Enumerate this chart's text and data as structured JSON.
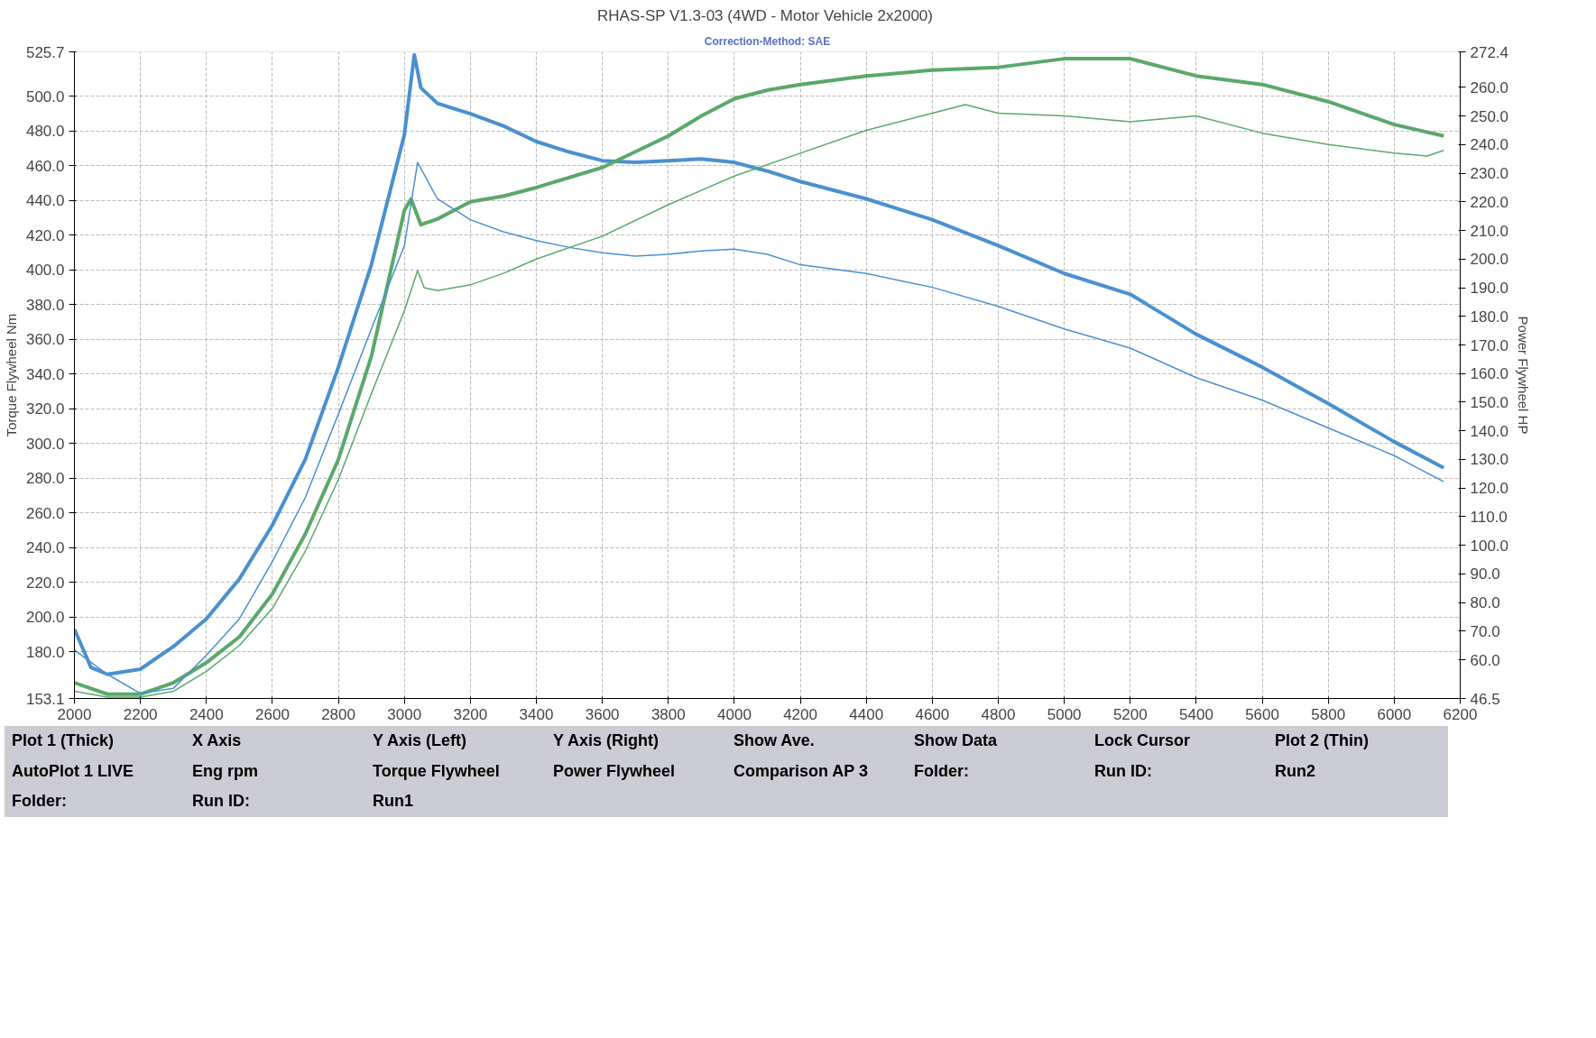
{
  "chart_data": {
    "type": "line",
    "title": "RHAS-SP V1.3-03  (4WD - Motor Vehicle 2x2000)",
    "subtitle": "Correction-Method: SAE",
    "ylabel": "Torque Flywheel Nm",
    "y2label": "Power Flywheel HP",
    "xlim": [
      2000,
      6200
    ],
    "xticks": [
      2000,
      2200,
      2400,
      2600,
      2800,
      3000,
      3200,
      3400,
      3600,
      3800,
      4000,
      4200,
      4400,
      4600,
      4800,
      5000,
      5200,
      5400,
      5600,
      5800,
      6000,
      6200
    ],
    "ylim": [
      153.1,
      525.7
    ],
    "yticks": [
      153.1,
      {
        "value": 180,
        "label": "180.0"
      },
      {
        "value": 200,
        "label": "200.0"
      },
      {
        "value": 220,
        "label": "220.0"
      },
      {
        "value": 240,
        "label": "240.0"
      },
      {
        "value": 260,
        "label": "260.0"
      },
      {
        "value": 280,
        "label": "280.0"
      },
      {
        "value": 300,
        "label": "300.0"
      },
      {
        "value": 320,
        "label": "320.0"
      },
      {
        "value": 340,
        "label": "340.0"
      },
      {
        "value": 360,
        "label": "360.0"
      },
      {
        "value": 380,
        "label": "380.0"
      },
      {
        "value": 400,
        "label": "400.0"
      },
      {
        "value": 420,
        "label": "420.0"
      },
      {
        "value": 440,
        "label": "440.0"
      },
      {
        "value": 460,
        "label": "460.0"
      },
      {
        "value": 480,
        "label": "480.0"
      },
      {
        "value": 500,
        "label": "500.0"
      },
      525.7
    ],
    "y2lim": [
      46.5,
      272.4
    ],
    "y2ticks": [
      46.5,
      {
        "value": 60,
        "label": "60.0"
      },
      {
        "value": 70,
        "label": "70.0"
      },
      {
        "value": 80,
        "label": "80.0"
      },
      {
        "value": 90,
        "label": "90.0"
      },
      {
        "value": 100,
        "label": "100.0"
      },
      {
        "value": 110,
        "label": "110.0"
      },
      {
        "value": 120,
        "label": "120.0"
      },
      {
        "value": 130,
        "label": "130.0"
      },
      {
        "value": 140,
        "label": "140.0"
      },
      {
        "value": 150,
        "label": "150.0"
      },
      {
        "value": 160,
        "label": "160.0"
      },
      {
        "value": 170,
        "label": "170.0"
      },
      {
        "value": 180,
        "label": "180.0"
      },
      {
        "value": 190,
        "label": "190.0"
      },
      {
        "value": 200,
        "label": "200.0"
      },
      {
        "value": 210,
        "label": "210.0"
      },
      {
        "value": 220,
        "label": "220.0"
      },
      {
        "value": 230,
        "label": "230.0"
      },
      {
        "value": 240,
        "label": "240.0"
      },
      {
        "value": 250,
        "label": "250.0"
      },
      {
        "value": 260,
        "label": "260.0"
      },
      272.4
    ],
    "grid": true,
    "line_style": "solid",
    "series": [
      {
        "color": "#4a90d0",
        "x": [
          2000,
          2050,
          2100,
          2200,
          2300,
          2400,
          2500,
          2600,
          2700,
          2800,
          2900,
          3000,
          3030,
          3050,
          3100,
          3200,
          3300,
          3400,
          3500,
          3600,
          3700,
          3800,
          3900,
          4000,
          4100,
          4200,
          4400,
          4600,
          4800,
          5000,
          5200,
          5400,
          5600,
          5800,
          6000,
          6150
        ],
        "values": [
          193,
          171,
          167,
          170,
          183,
          199,
          222,
          253,
          291,
          344,
          403,
          478,
          524,
          505,
          496,
          490,
          483,
          474,
          468,
          463,
          462,
          463,
          464,
          462,
          457,
          451,
          441,
          429,
          414,
          398,
          386,
          363,
          344,
          323,
          301,
          286
        ]
      },
      {
        "color": "#5aa86a",
        "axis": "y2",
        "x": [
          2000,
          2100,
          2200,
          2300,
          2400,
          2500,
          2600,
          2700,
          2800,
          2900,
          3000,
          3020,
          3050,
          3100,
          3200,
          3300,
          3400,
          3600,
          3800,
          3900,
          4000,
          4100,
          4200,
          4400,
          4600,
          4800,
          5000,
          5200,
          5400,
          5600,
          5800,
          6000,
          6150
        ],
        "values": [
          52,
          48,
          48,
          52,
          59,
          68,
          83,
          104,
          130,
          166,
          217,
          221,
          212,
          214,
          220,
          222,
          225,
          232,
          243,
          250,
          256,
          259,
          261,
          264,
          266,
          267,
          270,
          270,
          264,
          261,
          255,
          247,
          243
        ]
      },
      {
        "color": "#4a90d0",
        "x": [
          2000,
          2100,
          2200,
          2300,
          2400,
          2500,
          2600,
          2700,
          2800,
          2900,
          3000,
          3040,
          3100,
          3200,
          3300,
          3400,
          3500,
          3600,
          3700,
          3800,
          3900,
          4000,
          4100,
          4200,
          4400,
          4600,
          4800,
          5000,
          5200,
          5400,
          5600,
          5800,
          6000,
          6150
        ],
        "values": [
          181,
          167,
          156,
          159,
          178,
          199,
          232,
          269,
          317,
          366,
          414,
          462,
          441,
          429,
          422,
          417,
          413,
          410,
          408,
          409,
          411,
          412,
          409,
          403,
          398,
          390,
          379,
          366,
          355,
          338,
          325,
          309,
          293,
          278
        ]
      },
      {
        "color": "#5aa86a",
        "axis": "y2",
        "x": [
          2000,
          2100,
          2200,
          2300,
          2400,
          2500,
          2600,
          2700,
          2800,
          2900,
          3000,
          3040,
          3060,
          3100,
          3200,
          3300,
          3400,
          3600,
          3800,
          4000,
          4200,
          4400,
          4600,
          4700,
          4800,
          5000,
          5200,
          5400,
          5600,
          5800,
          6000,
          6100,
          6150
        ],
        "values": [
          49,
          47,
          47,
          49,
          56,
          65,
          78,
          98,
          123,
          153,
          182,
          196,
          190,
          189,
          191,
          195,
          200,
          208,
          219,
          229,
          237,
          245,
          251,
          254,
          251,
          250,
          248,
          250,
          244,
          240,
          237,
          236,
          238
        ]
      }
    ],
    "annotations": [
      "Plot 1 (Thick)",
      "X Axis",
      "Y Axis (Left)",
      "Y Axis (Right)",
      "Show Ave.",
      "Show Data",
      "Lock Cursor",
      "Plot 2 (Thin)",
      "AutoPlot 1 LIVE",
      "Eng rpm",
      "Torque Flywheel",
      "Power Flywheel",
      "Comparison AP 3",
      "Folder:",
      "Run ID:",
      "Run2",
      "Folder:",
      "Run ID:",
      "Run1"
    ]
  }
}
